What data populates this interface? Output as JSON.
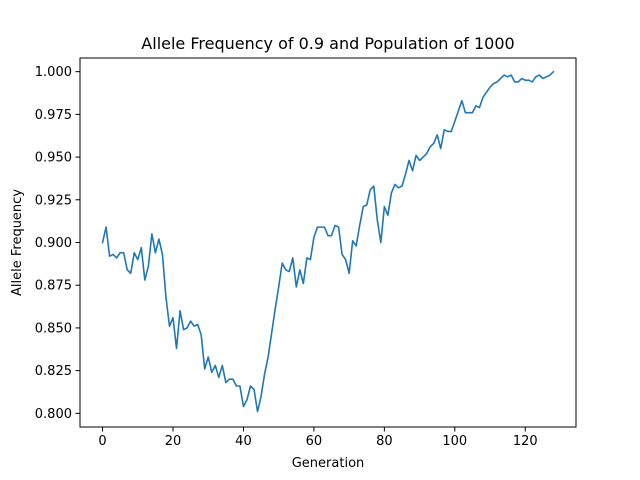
{
  "chart_data": {
    "type": "line",
    "title": "Allele Frequency of 0.9 and Population of 1000",
    "xlabel": "Generation",
    "ylabel": "Allele Frequency",
    "xlim": [
      -6.4,
      134.4
    ],
    "ylim": [
      0.792,
      1.008
    ],
    "xticks": [
      0,
      20,
      40,
      60,
      80,
      100,
      120
    ],
    "yticks": [
      0.8,
      0.825,
      0.85,
      0.875,
      0.9,
      0.925,
      0.95,
      0.975,
      1.0
    ],
    "ytick_labels": [
      "0.800",
      "0.825",
      "0.850",
      "0.875",
      "0.900",
      "0.925",
      "0.950",
      "0.975",
      "1.000"
    ],
    "grid": false,
    "series": [
      {
        "color": "#1f77b4",
        "x": [
          0,
          1,
          2,
          3,
          4,
          5,
          6,
          7,
          8,
          9,
          10,
          11,
          12,
          13,
          14,
          15,
          16,
          17,
          18,
          19,
          20,
          21,
          22,
          23,
          24,
          25,
          26,
          27,
          28,
          29,
          30,
          31,
          32,
          33,
          34,
          35,
          36,
          37,
          38,
          39,
          40,
          41,
          42,
          43,
          44,
          45,
          46,
          47,
          48,
          49,
          50,
          51,
          52,
          53,
          54,
          55,
          56,
          57,
          58,
          59,
          60,
          61,
          62,
          63,
          64,
          65,
          66,
          67,
          68,
          69,
          70,
          71,
          72,
          73,
          74,
          75,
          76,
          77,
          78,
          79,
          80,
          81,
          82,
          83,
          84,
          85,
          86,
          87,
          88,
          89,
          90,
          91,
          92,
          93,
          94,
          95,
          96,
          97,
          98,
          99,
          100,
          101,
          102,
          103,
          104,
          105,
          106,
          107,
          108,
          109,
          110,
          111,
          112,
          113,
          114,
          115,
          116,
          117,
          118,
          119,
          120,
          121,
          122,
          123,
          124,
          125,
          126,
          127,
          128
        ],
        "y": [
          0.9,
          0.909,
          0.892,
          0.893,
          0.891,
          0.894,
          0.894,
          0.884,
          0.882,
          0.894,
          0.89,
          0.897,
          0.878,
          0.886,
          0.905,
          0.894,
          0.902,
          0.893,
          0.868,
          0.851,
          0.856,
          0.838,
          0.86,
          0.849,
          0.85,
          0.854,
          0.851,
          0.852,
          0.846,
          0.826,
          0.833,
          0.824,
          0.828,
          0.821,
          0.828,
          0.818,
          0.82,
          0.82,
          0.816,
          0.816,
          0.804,
          0.808,
          0.816,
          0.814,
          0.801,
          0.81,
          0.823,
          0.833,
          0.847,
          0.861,
          0.874,
          0.888,
          0.884,
          0.883,
          0.891,
          0.874,
          0.884,
          0.876,
          0.891,
          0.89,
          0.903,
          0.909,
          0.909,
          0.909,
          0.904,
          0.904,
          0.91,
          0.909,
          0.893,
          0.89,
          0.882,
          0.901,
          0.898,
          0.91,
          0.921,
          0.922,
          0.931,
          0.933,
          0.913,
          0.9,
          0.921,
          0.916,
          0.929,
          0.934,
          0.932,
          0.933,
          0.94,
          0.948,
          0.942,
          0.951,
          0.948,
          0.95,
          0.952,
          0.956,
          0.958,
          0.963,
          0.955,
          0.966,
          0.965,
          0.965,
          0.971,
          0.977,
          0.983,
          0.976,
          0.976,
          0.976,
          0.98,
          0.979,
          0.985,
          0.988,
          0.991,
          0.993,
          0.994,
          0.996,
          0.998,
          0.997,
          0.998,
          0.994,
          0.994,
          0.996,
          0.995,
          0.995,
          0.994,
          0.997,
          0.998,
          0.996,
          0.997,
          0.998,
          1.0
        ]
      }
    ]
  }
}
